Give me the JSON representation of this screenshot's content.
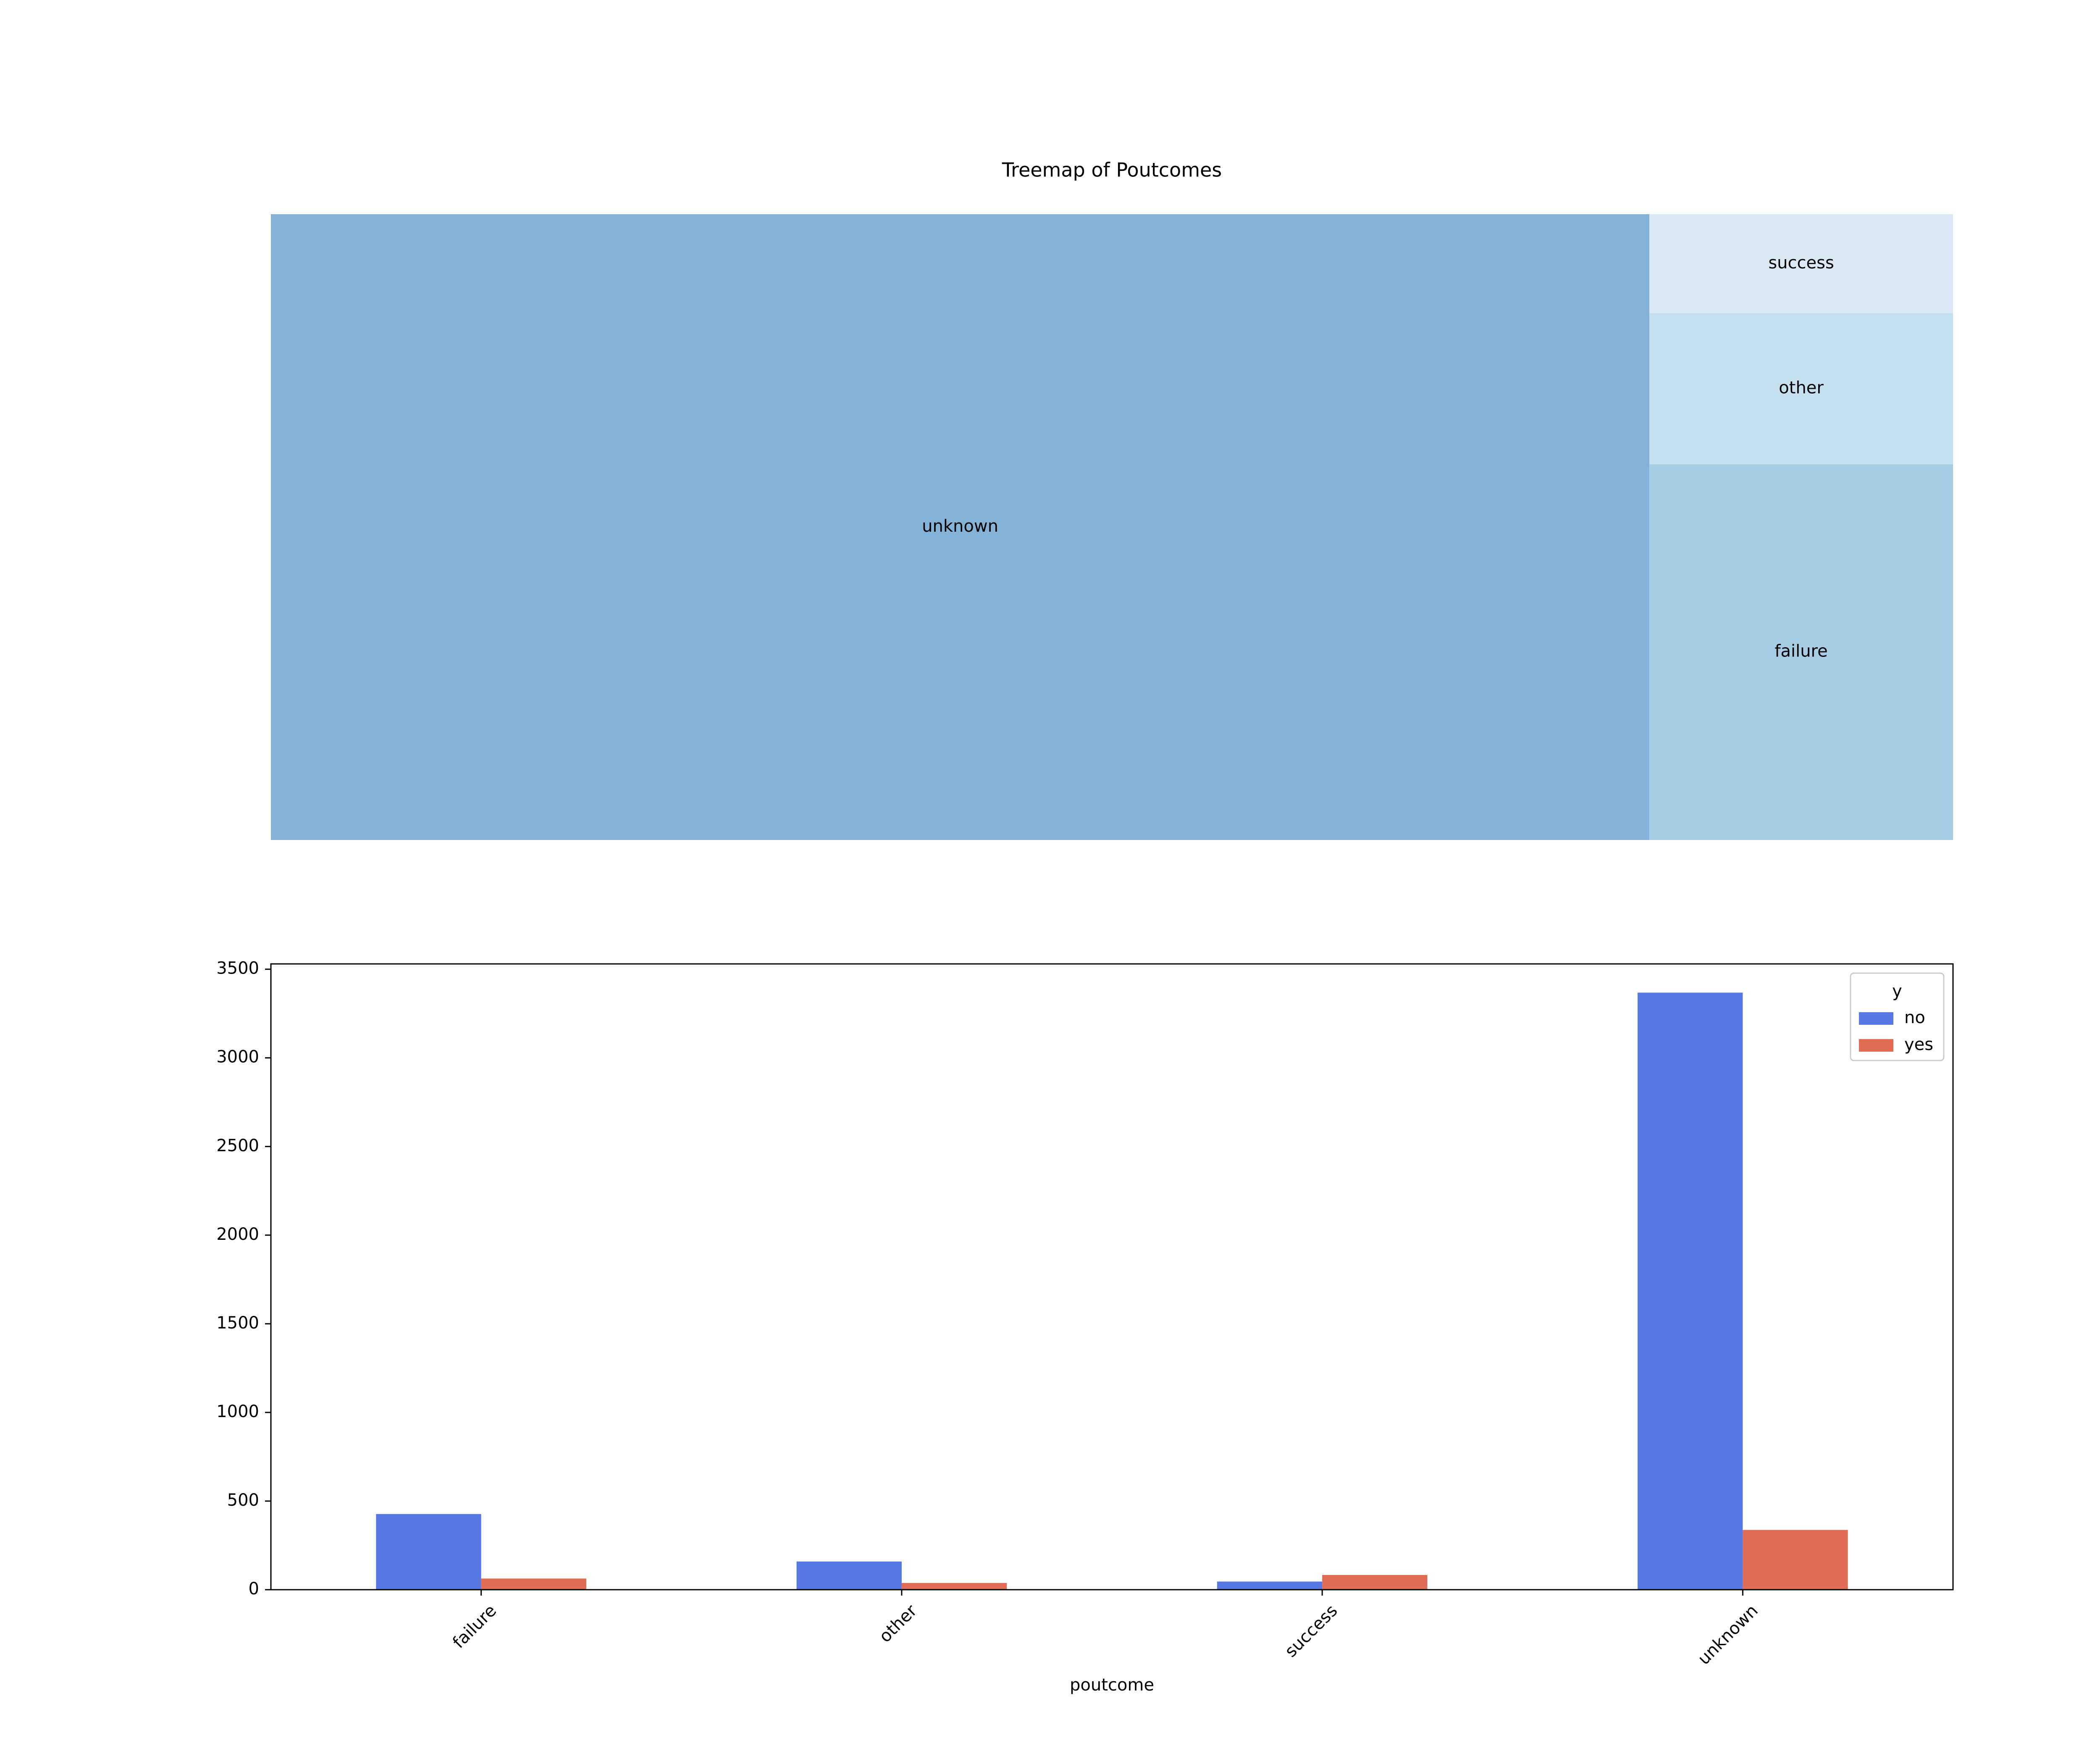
{
  "chart_data": [
    {
      "type": "treemap",
      "title": "Treemap of Poutcomes",
      "items": [
        {
          "label": "unknown",
          "value": 3705,
          "color": "#84b3d7"
        },
        {
          "label": "failure",
          "value": 490,
          "color": "#a7cde5"
        },
        {
          "label": "other",
          "value": 197,
          "color": "#c5e0ee"
        },
        {
          "label": "success",
          "value": 129,
          "color": "#dce8f3"
        }
      ]
    },
    {
      "type": "bar",
      "title": "",
      "xlabel": "poutcome",
      "ylabel": "",
      "categories": [
        "failure",
        "other",
        "success",
        "unknown"
      ],
      "ylim": [
        0,
        3530
      ],
      "yticks": [
        0,
        500,
        1000,
        1500,
        2000,
        2500,
        3000,
        3500
      ],
      "legend": {
        "title": "y",
        "position": "top-right"
      },
      "series": [
        {
          "name": "no",
          "color": "#5878e3",
          "values": [
            427,
            159,
            46,
            3368
          ]
        },
        {
          "name": "yes",
          "color": "#e16c55",
          "values": [
            63,
            38,
            83,
            337
          ]
        }
      ]
    }
  ]
}
